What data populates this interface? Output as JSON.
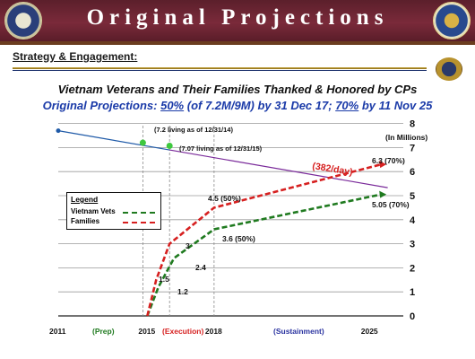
{
  "header": {
    "title": "Original Projections"
  },
  "slide": {
    "subheading": "Strategy & Engagement:"
  },
  "titles": {
    "line1": "Vietnam Veterans and Their Families Thanked & Honored by CPs",
    "line2_prefix": "Original Projections:  ",
    "line2_pct1": "50%",
    "line2_mid": "  (of 7.2M/9M) by 31 Dec 17; ",
    "line2_pct2": "70%",
    "line2_suffix": " by 11 Nov 25"
  },
  "colors": {
    "header_bg": "#6e2535",
    "vets": "#1f7a1f",
    "families": "#d62020",
    "population": "#1f5aa8",
    "population_late": "#7a2a9a",
    "rate_label": "#d62020",
    "phase_label": "#2a33a0"
  },
  "chart_data": {
    "type": "line",
    "y_unit_label": "(In Millions)",
    "ylim": [
      0,
      8
    ],
    "y_ticks": [
      "0",
      "1",
      "2",
      "3",
      "4",
      "5",
      "6",
      "7",
      "8"
    ],
    "x_ticks": [
      "2011",
      "2015",
      "2018",
      "2025"
    ],
    "phase_labels": [
      "(Prep)",
      "(Execution)",
      "(Sustainment)"
    ],
    "grid": true,
    "legend": {
      "title": "Legend",
      "entries": [
        "Vietnam Vets",
        "Families"
      ],
      "position": "left"
    },
    "series": [
      {
        "name": "Vietnam Vets",
        "style": "dashed",
        "color": "#1f7a1f",
        "points": [
          [
            2015,
            0
          ],
          [
            2015.5,
            1.2
          ],
          [
            2016.2,
            2.4
          ],
          [
            2018,
            3.6
          ],
          [
            2025.5,
            5.05
          ]
        ],
        "labels": [
          "",
          "1.2",
          "2.4",
          "3.6 (50%)",
          "5.05 (70%)"
        ]
      },
      {
        "name": "Families",
        "style": "dashed",
        "color": "#d62020",
        "points": [
          [
            2015,
            0
          ],
          [
            2015.4,
            1.5
          ],
          [
            2016,
            3
          ],
          [
            2018,
            4.5
          ],
          [
            2025.5,
            6.3
          ]
        ],
        "labels": [
          "",
          "1.5",
          "3",
          "4.5 (50%)",
          "6.3 (70%)"
        ]
      }
    ],
    "population_line": {
      "points": [
        [
          2011,
          7.7
        ],
        [
          2026,
          5.3
        ]
      ],
      "markers": [
        [
          2014.8,
          7.2
        ],
        [
          2016,
          7.07
        ]
      ],
      "marker_labels": [
        "(7.2 living as of 12/31/14)",
        "(7.07 living as of 12/31/15)"
      ],
      "rate_label": "(382/day)"
    }
  }
}
